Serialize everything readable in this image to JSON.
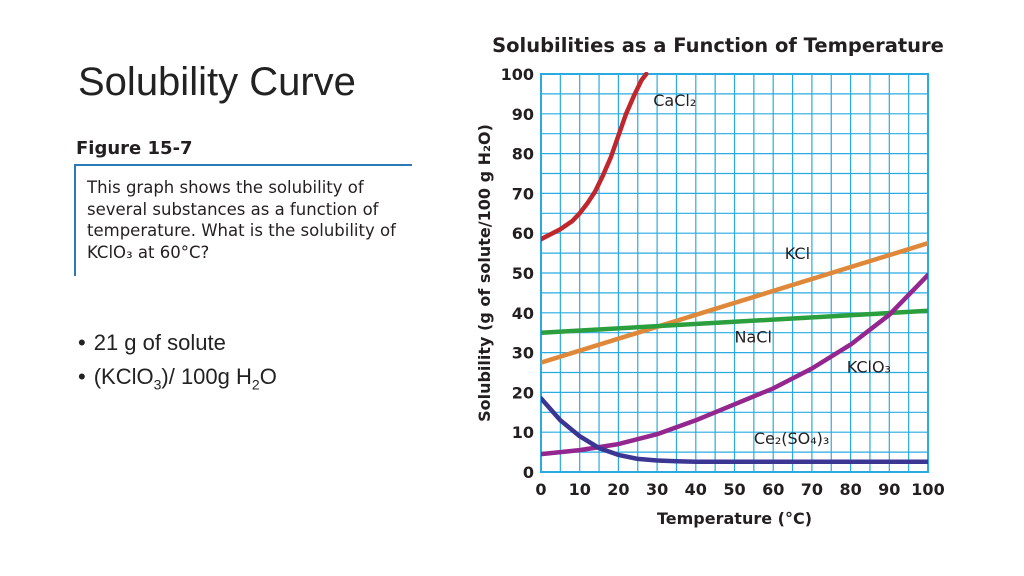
{
  "slide": {
    "title": "Solubility Curve",
    "figure_label": "Figure 15-7",
    "figure_caption": "This graph shows the solubility of several substances as a function of temperature. What is the solubility of KClO₃ at 60°C?",
    "bullets": [
      {
        "parts": [
          {
            "t": "21 g of solute"
          }
        ]
      },
      {
        "parts": [
          {
            "t": "(KClO"
          },
          {
            "t": "3",
            "sub": true
          },
          {
            "t": ")/ 100g H"
          },
          {
            "t": "2",
            "sub": true
          },
          {
            "t": "O"
          }
        ]
      }
    ]
  },
  "colors": {
    "grid": "#29abe2",
    "CaCl2": "#c0272d",
    "KCl": "#e0883a",
    "NaCl": "#2b9e3e",
    "KClO3": "#93278f",
    "Ce2SO43": "#3b3593",
    "text": "#231f20"
  },
  "chart_data": {
    "type": "line",
    "title": "Solubilities as a Function of Temperature",
    "xlabel": "Temperature (°C)",
    "ylabel": "Solubility (g of solute/100 g H₂O)",
    "xlim": [
      0,
      100
    ],
    "ylim": [
      0,
      100
    ],
    "xticks": [
      0,
      10,
      20,
      30,
      40,
      50,
      60,
      70,
      80,
      90,
      100
    ],
    "yticks": [
      0,
      10,
      20,
      30,
      40,
      50,
      60,
      70,
      80,
      90,
      100
    ],
    "grid": true,
    "series": [
      {
        "name": "CaCl₂",
        "color_key": "CaCl2",
        "x": [
          0,
          2,
          5,
          8,
          10,
          12,
          14,
          16,
          18,
          20,
          22,
          24,
          26,
          27.2
        ],
        "y": [
          58.5,
          59.5,
          61,
          63,
          65,
          67.5,
          70.5,
          74.5,
          79,
          84.5,
          90,
          94.5,
          98.5,
          100
        ],
        "label": {
          "text": "CaCl₂",
          "x": 29,
          "y": 92
        }
      },
      {
        "name": "KCl",
        "color_key": "KCl",
        "x": [
          0,
          100
        ],
        "y": [
          27.5,
          57.5
        ],
        "label": {
          "text": "KCl",
          "x": 63,
          "y": 53.5
        }
      },
      {
        "name": "NaCl",
        "color_key": "NaCl",
        "x": [
          0,
          100
        ],
        "y": [
          35,
          40.5
        ],
        "label": {
          "text": "NaCl",
          "x": 50,
          "y": 32.5
        }
      },
      {
        "name": "KClO₃",
        "color_key": "KClO3",
        "x": [
          0,
          10,
          20,
          30,
          40,
          50,
          60,
          70,
          80,
          90,
          100
        ],
        "y": [
          4.5,
          5.5,
          7,
          9.5,
          13,
          17,
          21,
          26,
          32,
          39.5,
          49.5
        ],
        "label": {
          "text": "KClO₃",
          "x": 79,
          "y": 25
        }
      },
      {
        "name": "Ce₂(SO₄)₃",
        "color_key": "Ce2SO43",
        "x": [
          0,
          5,
          10,
          15,
          20,
          25,
          30,
          35,
          40,
          50,
          60,
          70,
          80,
          90,
          100
        ],
        "y": [
          18.5,
          13,
          9,
          6,
          4.3,
          3.3,
          2.9,
          2.7,
          2.6,
          2.6,
          2.6,
          2.6,
          2.6,
          2.6,
          2.6
        ],
        "label": {
          "text": "Ce₂(SO₄)₃",
          "x": 55,
          "y": 7
        }
      }
    ]
  }
}
